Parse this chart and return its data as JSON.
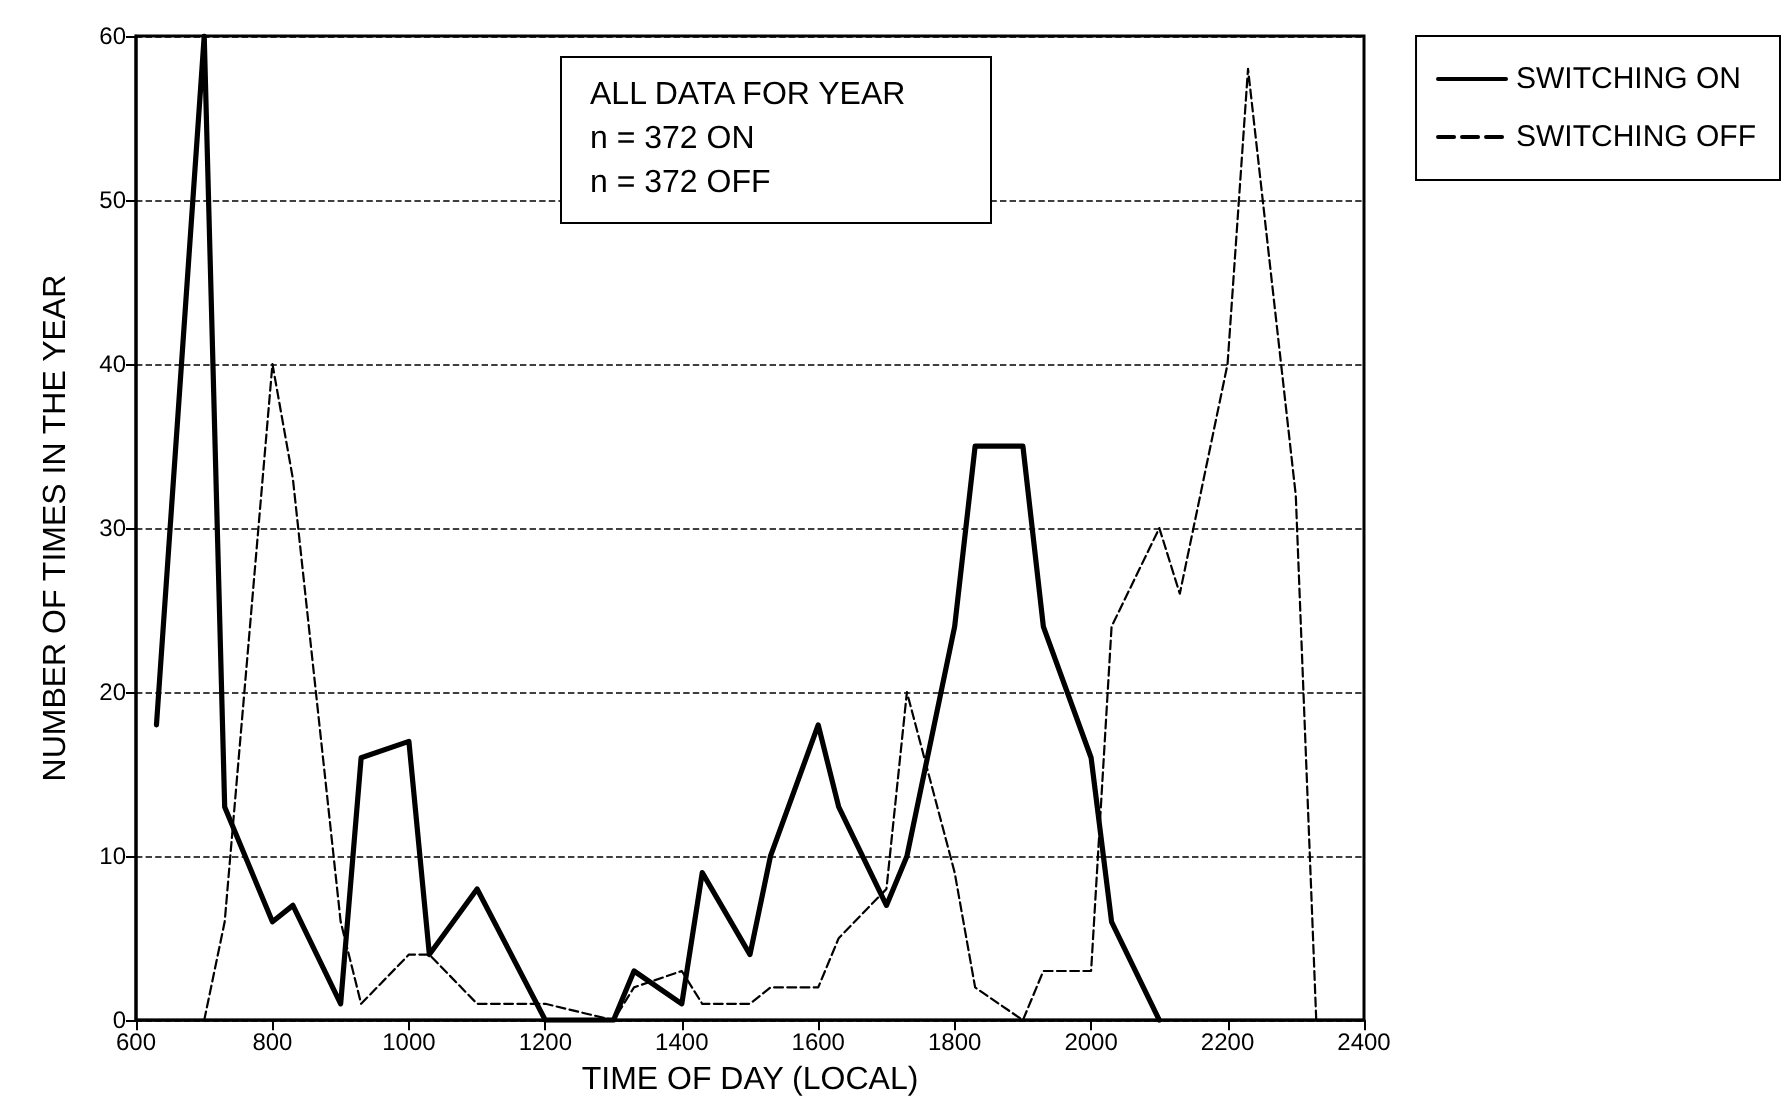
{
  "chart_data": {
    "type": "line",
    "xlabel": "TIME OF DAY (LOCAL)",
    "ylabel": "NUMBER OF TIMES IN THE YEAR",
    "annotations": [
      "ALL DATA FOR YEAR",
      "n = 372 ON",
      "n = 372 OFF"
    ],
    "series": [
      {
        "name": "SWITCHING ON",
        "color": "#000000",
        "line_style": "solid",
        "x": [
          630,
          700,
          730,
          800,
          830,
          900,
          930,
          1000,
          1030,
          1100,
          1200,
          1300,
          1330,
          1400,
          1430,
          1500,
          1530,
          1600,
          1630,
          1700,
          1730,
          1800,
          1830,
          1900,
          1930,
          2000,
          2030,
          2100
        ],
        "values": [
          18,
          60,
          13,
          6,
          7,
          1,
          16,
          17,
          4,
          8,
          0,
          0,
          3,
          1,
          9,
          4,
          10,
          18,
          13,
          7,
          10,
          24,
          35,
          35,
          24,
          16,
          6,
          0
        ]
      },
      {
        "name": "SWITCHING OFF",
        "color": "#000000",
        "line_style": "dashed",
        "x": [
          700,
          730,
          800,
          830,
          900,
          930,
          1000,
          1030,
          1100,
          1200,
          1300,
          1330,
          1400,
          1430,
          1500,
          1530,
          1600,
          1630,
          1700,
          1730,
          1800,
          1830,
          1900,
          1930,
          2000,
          2030,
          2100,
          2130,
          2200,
          2230,
          2300,
          2330
        ],
        "values": [
          0,
          6,
          40,
          33,
          6,
          1,
          4,
          4,
          1,
          1,
          0,
          2,
          3,
          1,
          1,
          2,
          2,
          5,
          8,
          20,
          9,
          2,
          0,
          3,
          3,
          24,
          30,
          26,
          40,
          58,
          32,
          0
        ]
      }
    ],
    "xlim": [
      600,
      2400
    ],
    "xticks": [
      600,
      800,
      1000,
      1200,
      1400,
      1600,
      1800,
      2000,
      2200,
      2400
    ],
    "ylim": [
      0,
      60
    ],
    "yticks": [
      0,
      10,
      20,
      30,
      40,
      50,
      60
    ],
    "grid": "y",
    "legend": "right",
    "marker": "none"
  }
}
